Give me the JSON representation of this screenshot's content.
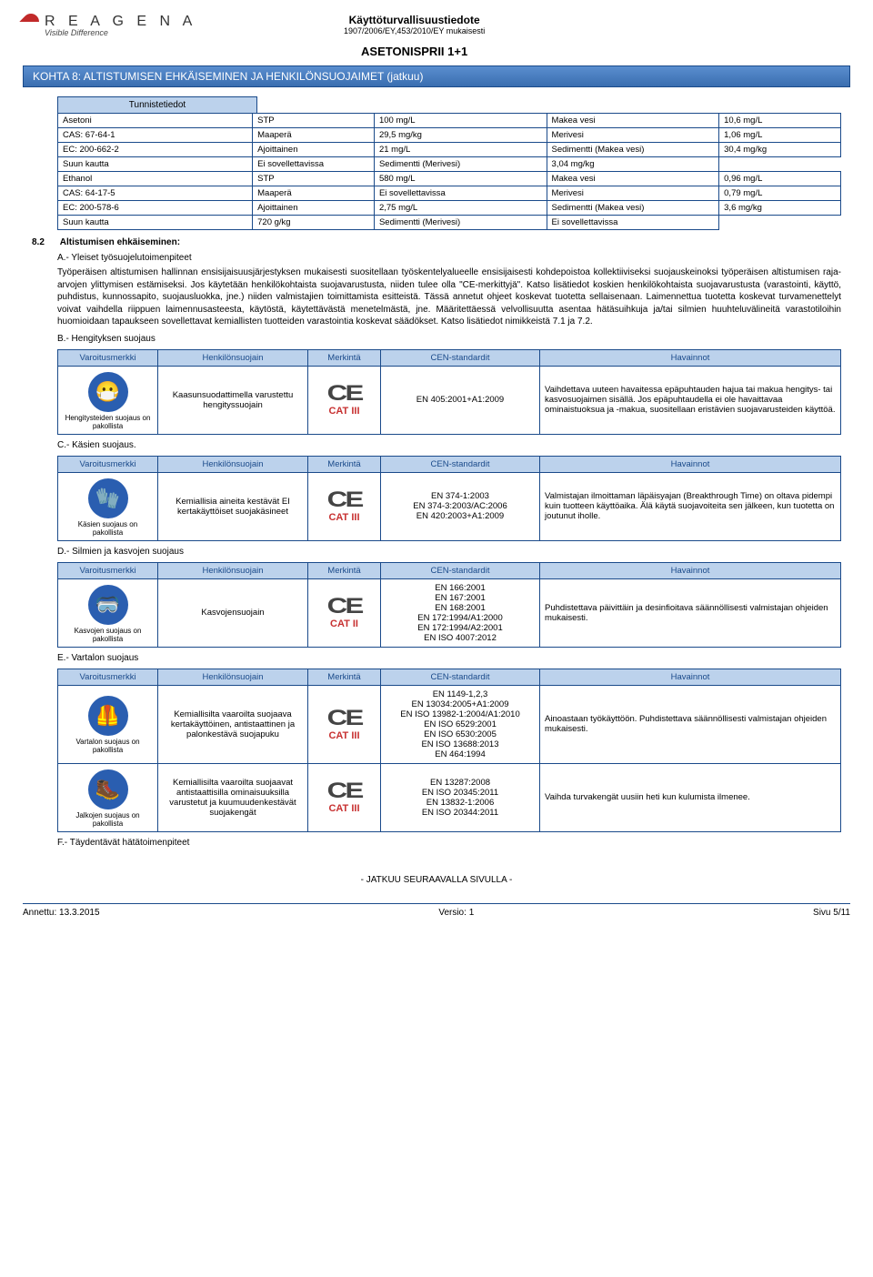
{
  "header": {
    "logo_text": "R E A G E N A",
    "logo_sub": "Visible Difference",
    "doc_head": "Käyttöturvallisuustiedote",
    "doc_sub": "1907/2006/EY,453/2010/EY mukaisesti",
    "doc_name": "ASETONISPRII 1+1"
  },
  "section_bar": "KOHTA 8: ALTISTUMISEN EHKÄISEMINEN JA HENKILÖNSUOJAIMET (jatkuu)",
  "id_cell_header": "Tunnistetiedot",
  "chem_rows": [
    [
      "Asetoni",
      "STP",
      "100 mg/L",
      "Makea vesi",
      "10,6 mg/L"
    ],
    [
      "CAS: 67-64-1",
      "Maaperä",
      "29,5 mg/kg",
      "Merivesi",
      "1,06 mg/L"
    ],
    [
      "EC: 200-662-2",
      "Ajoittainen",
      "21 mg/L",
      "Sedimentti (Makea vesi)",
      "30,4 mg/kg"
    ],
    [
      "",
      "Suun kautta",
      "Ei sovellettavissa",
      "Sedimentti (Merivesi)",
      "3,04 mg/kg"
    ],
    [
      "Ethanol",
      "STP",
      "580 mg/L",
      "Makea vesi",
      "0,96 mg/L"
    ],
    [
      "CAS: 64-17-5",
      "Maaperä",
      "Ei sovellettavissa",
      "Merivesi",
      "0,79 mg/L"
    ],
    [
      "EC: 200-578-6",
      "Ajoittainen",
      "2,75 mg/L",
      "Sedimentti (Makea vesi)",
      "3,6 mg/kg"
    ],
    [
      "",
      "Suun kautta",
      "720 g/kg",
      "Sedimentti (Merivesi)",
      "Ei sovellettavissa"
    ]
  ],
  "s82": {
    "num": "8.2",
    "title": "Altistumisen ehkäiseminen:"
  },
  "A": {
    "title": "A.- Yleiset työsuojelutoimenpiteet",
    "body": "Työperäisen altistumisen hallinnan ensisijaisuusjärjestyksen mukaisesti suositellaan työskentelyalueelle ensisijaisesti kohdepoistoa kollektiiviseksi suojauskeinoksi työperäisen altistumisen raja-arvojen ylittymisen estämiseksi. Jos käytetään henkilökohtaista suojavarustusta, niiden tulee olla \"CE-merkittyjä\". Katso lisätiedot koskien henkilökohtaista suojavarustusta (varastointi, käyttö, puhdistus, kunnossapito, suojausluokka, jne.) niiden valmistajien toimittamista esitteistä. Tässä annetut ohjeet koskevat tuotetta sellaisenaan. Laimennettua tuotetta koskevat turvamenettelyt voivat vaihdella riippuen laimennusasteesta, käytöstä, käytettävästä menetelmästä, jne. Määritettäessä velvollisuutta asentaa hätäsuihkuja ja/tai silmien huuhteluvälineitä varastotiloihin huomioidaan tapaukseen sovellettavat kemiallisten tuotteiden varastointia koskevat säädökset. Katso lisätiedot nimikkeistä 7.1 ja 7.2."
  },
  "ppe_headers": [
    "Varoitusmerkki",
    "Henkilönsuojain",
    "Merkintä",
    "CEN-standardit",
    "Havainnot"
  ],
  "B": {
    "title": "B.- Hengityksen suojaus",
    "pict_caption": "Hengitysteiden suojaus on pakollista",
    "glyph": "😷",
    "ppe": "Kaasunsuodattimella varustettu hengityssuojain",
    "cat": "CAT III",
    "std": "EN 405:2001+A1:2009",
    "obs": "Vaihdettava uuteen havaitessa epäpuhtauden hajua tai makua hengitys- tai kasvosuojaimen sisällä. Jos epäpuhtaudella ei ole havaittavaa ominaistuoksua ja -makua, suositellaan eristävien suojavarusteiden käyttöä."
  },
  "C": {
    "title": "C.- Käsien suojaus.",
    "pict_caption": "Käsien suojaus on pakollista",
    "glyph": "🧤",
    "ppe": "Kemiallisia aineita kestävät EI kertakäyttöiset suojakäsineet",
    "cat": "CAT III",
    "std": "EN 374-1:2003\nEN 374-3:2003/AC:2006\nEN 420:2003+A1:2009",
    "obs": "Valmistajan ilmoittaman läpäisyajan (Breakthrough Time) on oltava pidempi kuin tuotteen käyttöaika. Älä käytä suojavoiteita sen jälkeen, kun tuotetta on joutunut iholle."
  },
  "D": {
    "title": "D.- Silmien ja kasvojen suojaus",
    "pict_caption": "Kasvojen suojaus on pakollista",
    "glyph": "🥽",
    "ppe": "Kasvojensuojain",
    "cat": "CAT II",
    "std": "EN 166:2001\nEN 167:2001\nEN 168:2001\nEN 172:1994/A1:2000\nEN 172:1994/A2:2001\nEN ISO 4007:2012",
    "obs": "Puhdistettava päivittäin ja desinfioitava säännöllisesti valmistajan ohjeiden mukaisesti."
  },
  "E": {
    "title": "E.- Vartalon suojaus",
    "row1": {
      "pict_caption": "Vartalon suojaus on pakollista",
      "glyph": "🦺",
      "ppe": "Kemiallisilta vaaroilta suojaava kertakäyttöinen, antistaattinen ja palonkestävä suojapuku",
      "cat": "CAT III",
      "std": "EN 1149-1,2,3\nEN 13034:2005+A1:2009\nEN ISO 13982-1:2004/A1:2010\nEN ISO 6529:2001\nEN ISO 6530:2005\nEN ISO 13688:2013\nEN 464:1994",
      "obs": "Ainoastaan työkäyttöön. Puhdistettava säännöllisesti valmistajan ohjeiden mukaisesti."
    },
    "row2": {
      "pict_caption": "Jalkojen suojaus on pakollista",
      "glyph": "🥾",
      "ppe": "Kemiallisilta vaaroilta suojaavat antistaattisilla ominaisuuksilla varustetut ja kuumuudenkestävät suojakengät",
      "cat": "CAT III",
      "std": "EN 13287:2008\nEN ISO 20345:2011\nEN 13832-1:2006\nEN ISO 20344:2011",
      "obs": "Vaihda turvakengät uusiin heti kun kulumista ilmenee."
    }
  },
  "F": {
    "title": "F.- Täydentävät hätätoimenpiteet"
  },
  "cont": "- JATKUU SEURAAVALLA SIVULLA -",
  "footer": {
    "left_label": "Annettu:",
    "left_val": "13.3.2015",
    "mid_label": "Versio:",
    "mid_val": "1",
    "right_label": "Sivu",
    "right_val": "5/11"
  },
  "ce_glyph": "CE"
}
